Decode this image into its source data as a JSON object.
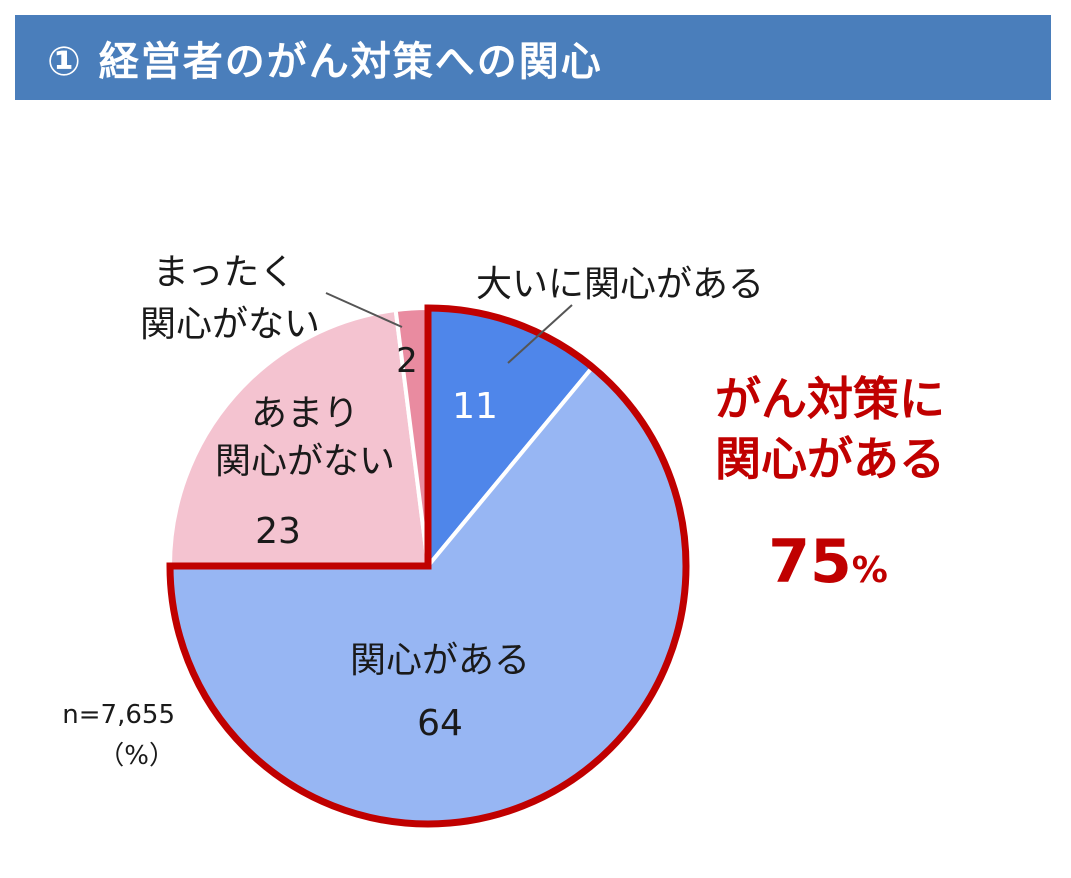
{
  "header": {
    "title": "① 経営者のがん対策への関心"
  },
  "chart_data": {
    "type": "pie",
    "unit": "%",
    "slices": [
      {
        "label": "大いに関心がある",
        "value": 11,
        "color": "#4f86ea"
      },
      {
        "label": "関心がある",
        "value": 64,
        "color": "#97b6f3"
      },
      {
        "label": "あまり関心がない",
        "value": 23,
        "color": "#f4c3d0"
      },
      {
        "label": "まったく関心がない",
        "value": 2,
        "color": "#e98ba0"
      }
    ],
    "highlight": {
      "label_line1": "がん対策に",
      "label_line2": "関心がある",
      "value": "75",
      "unit": "%",
      "color": "#c00000"
    },
    "sample": "n=7,655",
    "unit_note": "（%）"
  }
}
